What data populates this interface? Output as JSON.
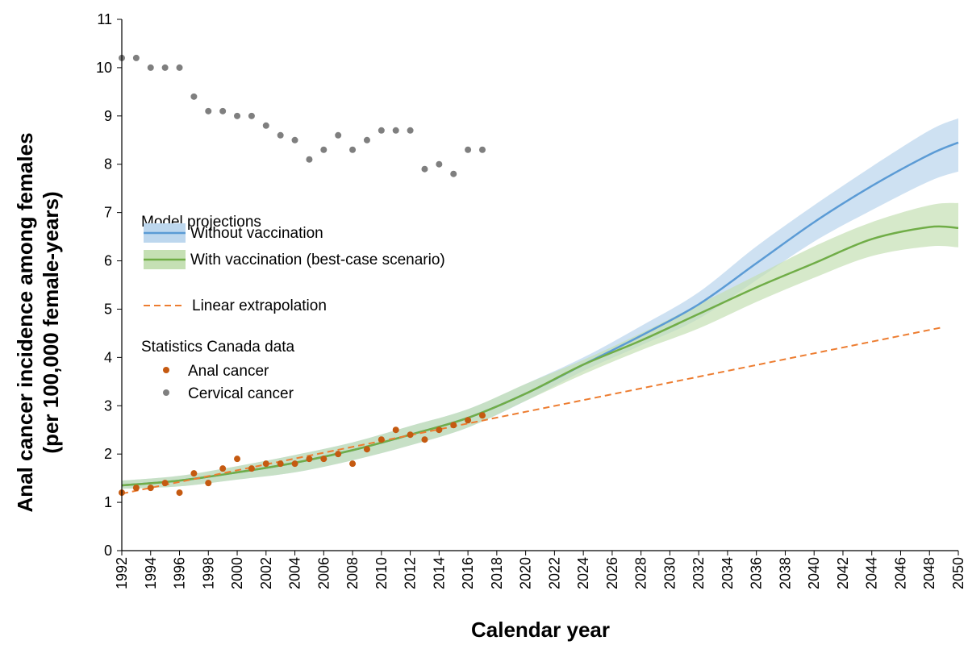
{
  "chart_data": {
    "type": "line",
    "title": "",
    "xlabel": "Calendar year",
    "ylabel_line1": "Anal cancer incidence among females",
    "ylabel_line2": "(per 100,000 female-years)",
    "xlim": [
      1992,
      2050
    ],
    "ylim": [
      0,
      11
    ],
    "x_ticks": [
      1992,
      1994,
      1996,
      1998,
      2000,
      2002,
      2004,
      2006,
      2008,
      2010,
      2012,
      2014,
      2016,
      2018,
      2020,
      2022,
      2024,
      2026,
      2028,
      2030,
      2032,
      2034,
      2036,
      2038,
      2040,
      2042,
      2044,
      2046,
      2048,
      2050
    ],
    "y_ticks": [
      0,
      1,
      2,
      3,
      4,
      5,
      6,
      7,
      8,
      9,
      10,
      11
    ],
    "legend": {
      "position": "center-left",
      "model_header": "Model projections",
      "without_label": "Without vaccination",
      "with_label": "With vaccination (best-case scenario)",
      "linear_label": "Linear extrapolation",
      "stats_header": "Statistics Canada data",
      "anal_label": "Anal cancer",
      "cervical_label": "Cervical cancer"
    },
    "colors": {
      "without": "#5b9bd5",
      "without_band": "#bdd7ee",
      "with": "#70ad47",
      "with_band": "#c5e0b4",
      "overlap_band": "#a9d1d8",
      "linear": "#ed7d31",
      "anal": "#c55a11",
      "cervical": "#7f7f7f"
    },
    "series": [
      {
        "name": "Without vaccination",
        "x": [
          1992,
          1996,
          2000,
          2004,
          2008,
          2012,
          2016,
          2020,
          2024,
          2028,
          2032,
          2036,
          2040,
          2044,
          2048,
          2050
        ],
        "values": [
          1.35,
          1.45,
          1.62,
          1.82,
          2.08,
          2.4,
          2.75,
          3.25,
          3.85,
          4.45,
          5.1,
          5.95,
          6.8,
          7.55,
          8.2,
          8.45
        ],
        "lower": [
          1.28,
          1.33,
          1.47,
          1.62,
          1.87,
          2.18,
          2.55,
          3.1,
          3.72,
          4.25,
          4.8,
          5.6,
          6.4,
          7.05,
          7.65,
          7.85
        ],
        "upper": [
          1.45,
          1.55,
          1.75,
          1.98,
          2.24,
          2.58,
          2.93,
          3.45,
          4.0,
          4.65,
          5.35,
          6.3,
          7.15,
          7.95,
          8.7,
          8.95
        ]
      },
      {
        "name": "With vaccination (best-case scenario)",
        "x": [
          1992,
          1996,
          2000,
          2004,
          2008,
          2012,
          2016,
          2020,
          2024,
          2028,
          2032,
          2036,
          2040,
          2044,
          2048,
          2050
        ],
        "values": [
          1.35,
          1.45,
          1.62,
          1.82,
          2.08,
          2.4,
          2.75,
          3.25,
          3.85,
          4.35,
          4.9,
          5.45,
          5.95,
          6.45,
          6.7,
          6.68
        ],
        "lower": [
          1.28,
          1.33,
          1.47,
          1.62,
          1.87,
          2.18,
          2.55,
          3.1,
          3.65,
          4.15,
          4.6,
          5.15,
          5.65,
          6.1,
          6.3,
          6.28
        ],
        "upper": [
          1.45,
          1.55,
          1.75,
          1.98,
          2.24,
          2.58,
          2.93,
          3.45,
          3.95,
          4.5,
          5.1,
          5.7,
          6.3,
          6.8,
          7.15,
          7.2
        ]
      },
      {
        "name": "Linear extrapolation",
        "x": [
          1992,
          2049
        ],
        "values": [
          1.18,
          4.63
        ]
      }
    ],
    "anal_cancer_data": {
      "x": [
        1992,
        1993,
        1994,
        1995,
        1996,
        1997,
        1998,
        1999,
        2000,
        2001,
        2002,
        2003,
        2004,
        2005,
        2006,
        2007,
        2008,
        2009,
        2010,
        2011,
        2012,
        2013,
        2014,
        2015,
        2016,
        2017
      ],
      "values": [
        1.2,
        1.3,
        1.3,
        1.4,
        1.2,
        1.6,
        1.4,
        1.7,
        1.9,
        1.7,
        1.8,
        1.8,
        1.8,
        1.9,
        1.9,
        2.0,
        1.8,
        2.1,
        2.3,
        2.5,
        2.4,
        2.3,
        2.5,
        2.6,
        2.7,
        2.8
      ]
    },
    "cervical_cancer_data": {
      "x": [
        1992,
        1993,
        1994,
        1995,
        1996,
        1997,
        1998,
        1999,
        2000,
        2001,
        2002,
        2003,
        2004,
        2005,
        2006,
        2007,
        2008,
        2009,
        2010,
        2011,
        2012,
        2013,
        2014,
        2015,
        2016,
        2017
      ],
      "values": [
        10.2,
        10.2,
        10.0,
        10.0,
        10.0,
        9.4,
        9.1,
        9.1,
        9.0,
        9.0,
        8.8,
        8.6,
        8.5,
        8.1,
        8.3,
        8.6,
        8.3,
        8.5,
        8.7,
        8.7,
        8.7,
        7.9,
        8.0,
        7.8,
        8.3,
        8.3
      ]
    }
  }
}
